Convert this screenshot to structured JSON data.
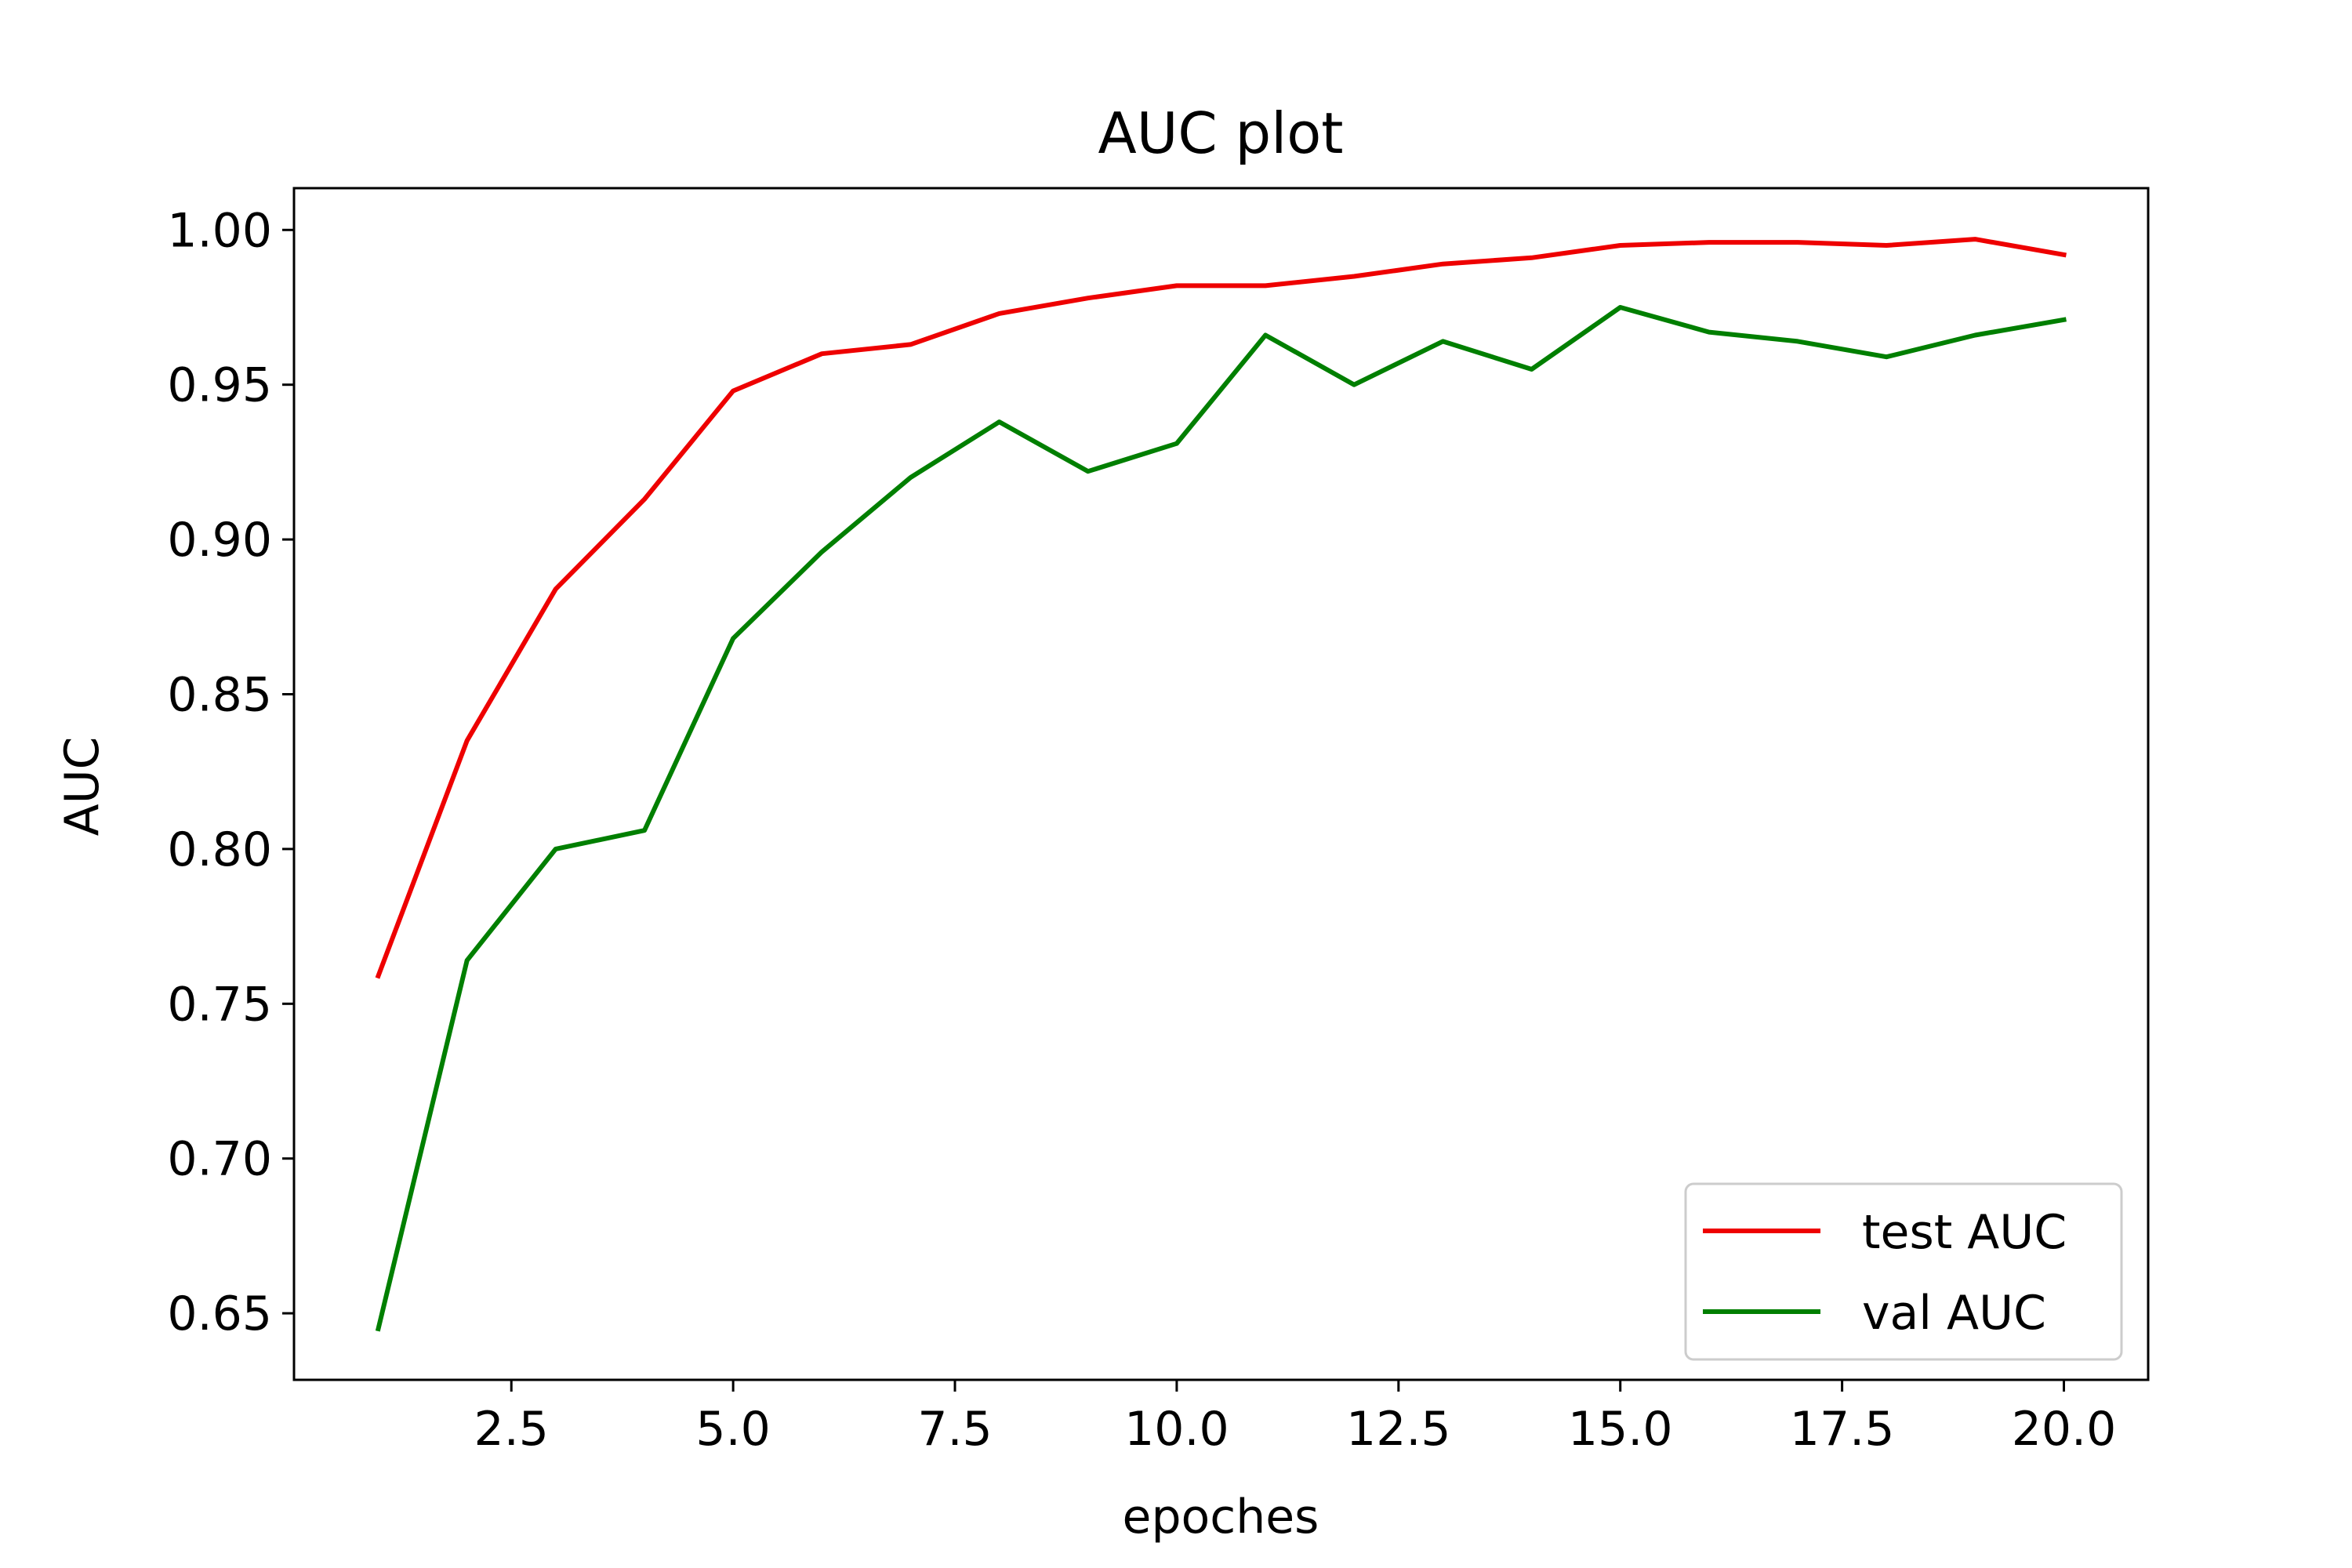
{
  "chart_data": {
    "type": "line",
    "title": "AUC plot",
    "xlabel": "epoches",
    "ylabel": "AUC",
    "x": [
      1,
      2,
      3,
      4,
      5,
      6,
      7,
      8,
      9,
      10,
      11,
      12,
      13,
      14,
      15,
      16,
      17,
      18,
      19,
      20
    ],
    "series": [
      {
        "name": "test AUC",
        "color": "#ee0000",
        "values": [
          0.759,
          0.835,
          0.884,
          0.913,
          0.948,
          0.96,
          0.963,
          0.973,
          0.978,
          0.982,
          0.982,
          0.985,
          0.989,
          0.991,
          0.995,
          0.996,
          0.996,
          0.995,
          0.997,
          0.992
        ]
      },
      {
        "name": "val AUC",
        "color": "#007f00",
        "values": [
          0.645,
          0.764,
          0.8,
          0.806,
          0.868,
          0.896,
          0.92,
          0.938,
          0.922,
          0.931,
          0.966,
          0.95,
          0.964,
          0.955,
          0.975,
          0.967,
          0.964,
          0.959,
          0.966,
          0.971
        ]
      }
    ],
    "xlim": [
      0.05,
      20.95
    ],
    "ylim": [
      0.6285,
      1.0135
    ],
    "xticks": [
      "2.5",
      "5.0",
      "7.5",
      "10.0",
      "12.5",
      "15.0",
      "17.5",
      "20.0"
    ],
    "xtick_values": [
      2.5,
      5.0,
      7.5,
      10.0,
      12.5,
      15.0,
      17.5,
      20.0
    ],
    "yticks": [
      "0.65",
      "0.70",
      "0.75",
      "0.80",
      "0.85",
      "0.90",
      "0.95",
      "1.00"
    ],
    "ytick_values": [
      0.65,
      0.7,
      0.75,
      0.8,
      0.85,
      0.9,
      0.95,
      1.0
    ],
    "grid": false,
    "legend_position": "lower-right"
  }
}
